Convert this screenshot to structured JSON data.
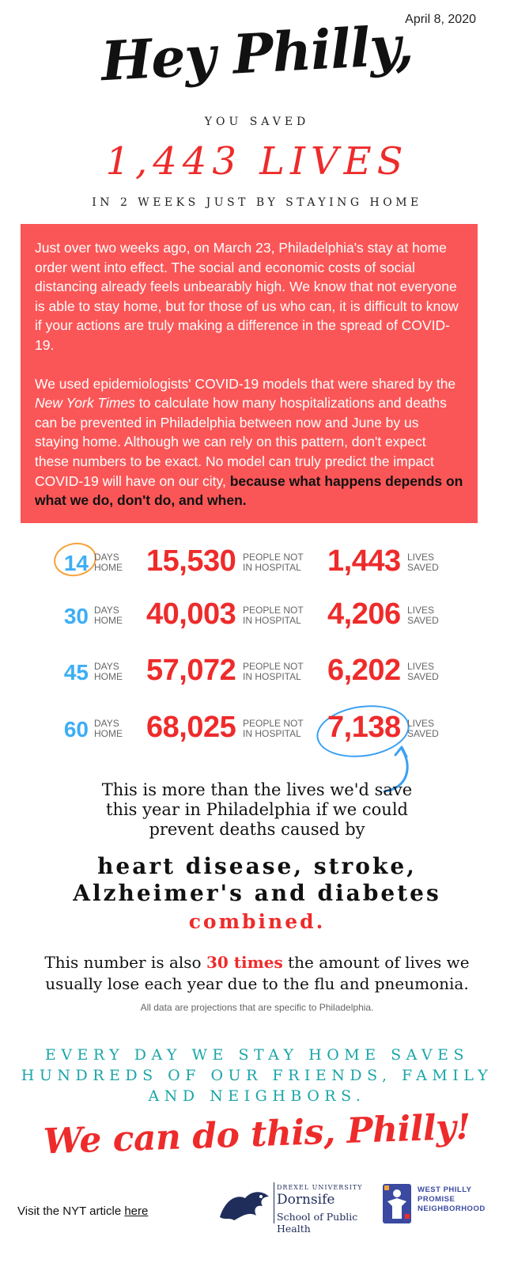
{
  "header": {
    "date": "April 8, 2020",
    "greeting": "Hey Philly,",
    "you_saved": "YOU SAVED",
    "lives_headline": "1,443 LIVES",
    "subline": "IN 2 WEEKS JUST BY STAYING HOME"
  },
  "intro": {
    "p1": "Just over two weeks ago, on March 23, Philadelphia's stay at home order went into effect. The social and economic costs of social distancing  already feels unbearably high. We know that not everyone is able to stay home, but for those of us who can, it is difficult to know if your actions are truly making a difference in the spread of COVID-19.",
    "p2_a": "We used epidemiologists' COVID-19 models that were shared by the ",
    "p2_source": "New York Times",
    "p2_b": " to calculate how many hospitalizations and deaths can be prevented in Philadelphia between now and June by us staying home. Although we can rely on this pattern, don't expect these numbers to be exact. No model can truly predict the impact COVID-19 will have on our city, ",
    "p2_bold": "because what happens depends on what we do, don't do, and when."
  },
  "stats": {
    "labels": {
      "days_1": "DAYS",
      "days_2": "HOME",
      "hosp_1": "PEOPLE NOT",
      "hosp_2": "IN HOSPITAL",
      "lives_1": "LIVES",
      "lives_2": "SAVED"
    },
    "rows": [
      {
        "days": "14",
        "hospital": "15,530",
        "lives": "1,443"
      },
      {
        "days": "30",
        "hospital": "40,003",
        "lives": "4,206"
      },
      {
        "days": "45",
        "hospital": "57,072",
        "lives": "6,202"
      },
      {
        "days": "60",
        "hospital": "68,025",
        "lives": "7,138"
      }
    ]
  },
  "comparison": {
    "line1": "This is more than the lives we'd save",
    "line2": "this year in Philadelphia if we could",
    "line3": "prevent deaths caused by",
    "diseases_1": "heart disease, stroke,",
    "diseases_2": "Alzheimer's and diabetes",
    "combined": "combined.",
    "flu_a": "This number is also ",
    "flu_highlight": "30 times",
    "flu_b": " the amount of lives we",
    "flu_line2": "usually lose each year due to the flu and pneumonia.",
    "note": "All data are projections that are specific to Philadelphia."
  },
  "closing": {
    "line1": "EVERY DAY WE STAY HOME SAVES",
    "line2": "HUNDREDS OF OUR FRIENDS, FAMILY",
    "line3": "AND NEIGHBORS.",
    "slogan": "We can do this, Philly!"
  },
  "footer": {
    "visit_text": "Visit the NYT article ",
    "visit_link": "here",
    "drexel_small": "DREXEL UNIVERSITY",
    "drexel_name": "Dornsife",
    "drexel_school": "School of Public Health",
    "wp_1": "WEST PHILLY",
    "wp_2": "PROMISE",
    "wp_3": "NEIGHBORHOOD"
  },
  "colors": {
    "accent_red": "#ee2b2b",
    "box_red": "#fb5657",
    "blue": "#3daef5",
    "teal": "#1ba5a8",
    "orange": "#f6a23a"
  }
}
